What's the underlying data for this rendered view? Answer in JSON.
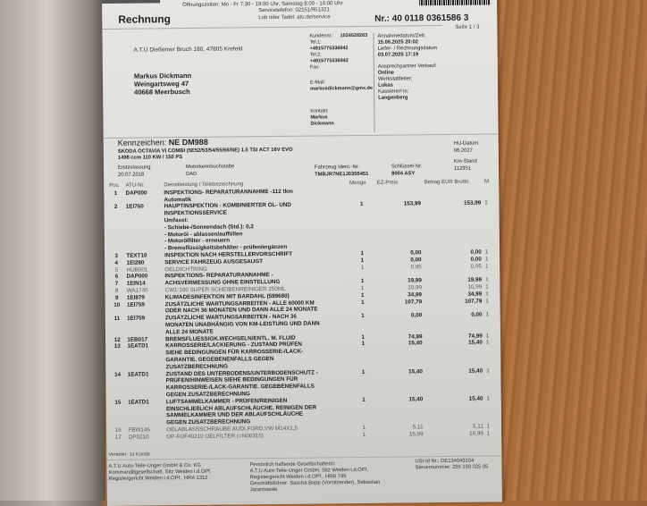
{
  "header": {
    "opening_hours": "Öffnungszeiten: Mo - Fr 7:30 - 19:00 Uhr, Samstag 8:00 - 14:00 Uhr",
    "service_phone": "Servicetelefon: 02151/951321",
    "feedback": "Lob oder Tadel: atu.de/service",
    "title": "Rechnung",
    "invoice_number": "Nr.: 40 0118 0361586 3",
    "page": "Seite 1 / 3"
  },
  "sender": "A.T.U  Dießemer Bruch 180,  47805 Krefeld",
  "recipient": [
    "Markus Dickmann",
    "Weingartsweg 47",
    "40668 Meerbusch"
  ],
  "customer": {
    "number_label": "Kundennr.:",
    "number": "1024528263",
    "tel1_label": "Tel.1:",
    "tel1": "+4915775336942",
    "tel2_label": "Tel.2:",
    "tel2": "+4915775336942",
    "fax_label": "Fax:",
    "email_label": "E-Mail:",
    "email": "markusdickmann@gmx.de",
    "contact_label": "Kontakt:",
    "contact": [
      "Markus",
      "Dickmann"
    ]
  },
  "meta": {
    "acceptance_label": "Annahmedatum/Zeit:",
    "acceptance": "15.06.2025  20:02",
    "delivery_label": "Liefer- / Rechnungsdatum",
    "delivery": "03.07.2025 17:19",
    "sales_contact_label": "Ansprechpartner Verkauf:",
    "sales_contact": "Online",
    "workshop_label": "Werkstattleiter:",
    "workshop": "Lukas",
    "cashier_label": "Kassierer/-in:",
    "cashier": "Langenberg"
  },
  "vehicle": {
    "plate_label": "Kennzeichen:",
    "plate": "NE DM988",
    "model": "SKODA OCTAVIA VI COMBI (5E52/53/54/55/56/NE) 1.5 TSI ACT 16V EVO",
    "engine": "1498 ccm 110 KW / 150 PS",
    "hu_label": "HU-Datum",
    "hu": "06.2027",
    "first_reg_label": "Erstzulassung",
    "first_reg": "20.07.2018",
    "engine_code_label": "Motorkennbuchstabe",
    "engine_code": "DAD",
    "vin_label": "Fahrzeug Ident.-Nr.",
    "vin": "TMBJR7NE1J0356451",
    "key_label": "Schlüssel-Nr.",
    "key": "8004 ASY",
    "km_label": "Km-Stand",
    "km": "112951"
  },
  "table": {
    "headers": [
      "Pos.",
      "ATU-Nr.",
      "Dienstleistung / Teilebezeichnung",
      "Menge",
      "EZ-Preis",
      "Betrag EUR Brutto",
      "M"
    ],
    "rows": [
      {
        "pos": "1",
        "atu": "DAP000",
        "desc": [
          "INSPEKTIONS- REPARATURANNAHME -112 tkm",
          "Automatik"
        ],
        "qty": "",
        "price": "",
        "total": "",
        "m": "",
        "style": "bold"
      },
      {
        "pos": "2",
        "atu": "1EI760",
        "desc": [
          "HAUPTINSPEKTION - KOMBINIERTER ÖL- UND",
          "INSPEKTIONSSERVICE",
          "Umfasst:",
          "- Schiebe-/Sonnendach (Std.): 0,2",
          "- Motoröl - ablassen/auffüllen",
          "- Motorölfilter - erneuern",
          "- Bremsflüssigkeitsbehälter - prüfen/ergänzen"
        ],
        "qty": "1",
        "price": "153,99",
        "total": "153,99",
        "m": "1",
        "style": "bold"
      },
      {
        "pos": "3",
        "atu": "TEXT10",
        "desc": [
          "INSPEKTION NACH HERSTELLERVORSCHRIFT"
        ],
        "qty": "1",
        "price": "0,00",
        "total": "0,00",
        "m": "1",
        "style": "bold"
      },
      {
        "pos": "4",
        "atu": "1EI280",
        "desc": [
          "SERVICE FAHRZEUG AUSGESAUGT"
        ],
        "qty": "1",
        "price": "0,00",
        "total": "0,00",
        "m": "1",
        "style": "bold"
      },
      {
        "pos": "5",
        "atu": "HUB001",
        "desc": [
          "OELDICHTRING"
        ],
        "qty": "1",
        "price": "0,95",
        "total": "0,95",
        "m": "1",
        "style": "light"
      },
      {
        "pos": "6",
        "atu": "DAP000",
        "desc": [
          "INSPEKTIONS- REPARATURANNAHME -"
        ],
        "qty": "",
        "price": "",
        "total": "",
        "m": "",
        "style": "bold"
      },
      {
        "pos": "7",
        "atu": "1EIN14",
        "desc": [
          "ACHSVERMESSUNG OHNE EINSTELLUNG"
        ],
        "qty": "1",
        "price": "19,99",
        "total": "19,99",
        "m": "1",
        "style": "bold"
      },
      {
        "pos": "8",
        "atu": "WA1745",
        "desc": [
          "CW1:100 SUPER SCHEIBENREINIGER  250ML"
        ],
        "qty": "1",
        "price": "10,99",
        "total": "10,99",
        "m": "1",
        "style": "light"
      },
      {
        "pos": "9",
        "atu": "1EI879",
        "desc": [
          "KLIMADESINFEKTION MIT BARDAHL (599680)"
        ],
        "qty": "1",
        "price": "34,99",
        "total": "34,99",
        "m": "1",
        "style": "bold"
      },
      {
        "pos": "10",
        "atu": "1EI759",
        "desc": [
          "ZUSÄTZLICHE WARTUNGSARBEITEN - ALLE 60000 KM",
          "ODER NACH 36 MONATEN UND DANN ALLE 24 MONATE"
        ],
        "qty": "1",
        "price": "107,79",
        "total": "107,79",
        "m": "1",
        "style": "bold"
      },
      {
        "pos": "11",
        "atu": "1EI759",
        "desc": [
          "ZUSÄTZLICHE WARTUNGSARBEITEN - NACH 36",
          "MONATEN UNABHÄNGIG VON KM-LEISTUNG UND DANN",
          "ALLE 24 MONATE"
        ],
        "qty": "1",
        "price": "0,00",
        "total": "0,00",
        "m": "1",
        "style": "bold"
      },
      {
        "pos": "12",
        "atu": "1EB017",
        "desc": [
          "BREMSFLUESSIGK.WECHSELN/ENTL. M. FLUID"
        ],
        "qty": "1",
        "price": "74,99",
        "total": "74,99",
        "m": "1",
        "style": "bold"
      },
      {
        "pos": "13",
        "atu": "1EATD1",
        "desc": [
          "KARROSSERIE/LACKIERUNG - ZUSTAND PRÜFEN",
          "SIEHE BEDINGUNGEN FÜR KARROSSERIE-/LACK-",
          "GARANTIE. GEGEBENENFALLS GEGEN",
          "ZUSATZBERECHNUNG"
        ],
        "qty": "1",
        "price": "15,40",
        "total": "15,40",
        "m": "1",
        "style": "bold"
      },
      {
        "pos": "14",
        "atu": "1EATD1",
        "desc": [
          "ZUSTAND DES UNTERBODENS/UNTERBODENSCHUTZ -",
          "PRÜFEN/HINWEISEN SIEHE BEDINGUNGEN FÜR",
          "KARROSSERIE-/LACK-GARANTIE. GEGEBENENFALLS",
          "GEGEN ZUSATZBERECHNUNG"
        ],
        "qty": "1",
        "price": "15,40",
        "total": "15,40",
        "m": "1",
        "style": "bold"
      },
      {
        "pos": "15",
        "atu": "1EATD1",
        "desc": [
          "LUFTSAMMELKAMMER - PRÜFEN/REINIGEN",
          "EINSCHLIEßLICH ABLAUFSCHLÄUCHE. REINIGEN DER",
          "SAMMELKAMMER UND DER ABLAUFSCHLÄUCHE",
          "GEGEN ZUSATZBERECHNUNG"
        ],
        "qty": "1",
        "price": "15,40",
        "total": "15,40",
        "m": "1",
        "style": "bold"
      },
      {
        "pos": "16",
        "atu": "FBW146",
        "desc": [
          "OELABLASSSCHRAUBE AUDI,FORD,VW M14X1,5"
        ],
        "qty": "1",
        "price": "5,11",
        "total": "5,11",
        "m": "1",
        "style": "light"
      },
      {
        "pos": "17",
        "atu": "OP0210",
        "desc": [
          "OP-FOF40210  OELFILTER (=N00315)"
        ],
        "qty": "1",
        "price": "16,99",
        "total": "16,99",
        "m": "1",
        "style": "light"
      }
    ]
  },
  "distributor": "Verteiler: 1x Kunde",
  "footer": {
    "col1": [
      "A.T.U Auto-Teile-Unger GmbH & Co. KG",
      "Kommanditgesellschaft, Sitz Weiden i.d.OPf.",
      "Registergericht Weiden i.d.OPf., HRA 1312"
    ],
    "col2": [
      "Persönlich haftende Gesellschafterin:",
      "A.T.U Auto-Teile-Unger GmbH, Sitz Weiden i.d.OPf.",
      "Registergericht Weiden i.d.OPf., HRB 745",
      "Geschäftsführer: Sascha Bopp (Vorsitzender), Sebastian",
      "Jarantowski"
    ],
    "col3": [
      "USt-Id Nr.: DE134043104",
      "Steuernummer: 255 150 025 05"
    ]
  }
}
